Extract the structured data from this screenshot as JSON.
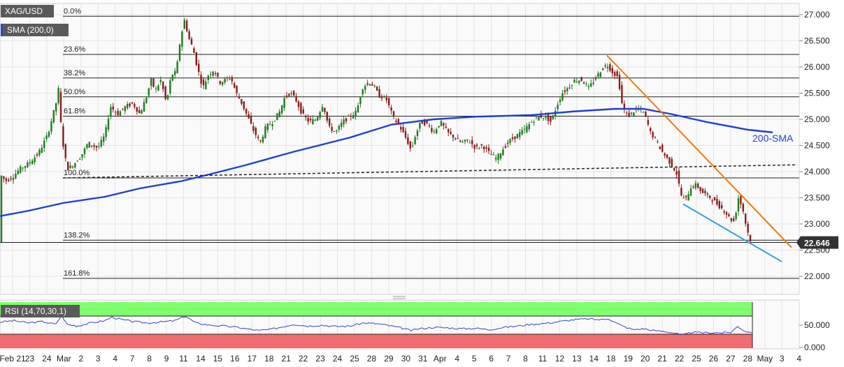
{
  "header": {
    "symbol": "XAG/USD",
    "indicator": "SMA (200,0)",
    "rsi_label": "RSI (14,70,30,1)"
  },
  "colors": {
    "grid": "#e4e4e4",
    "bull_candle": "#1e7a1e",
    "bear_candle": "#8b1a1a",
    "sma": "#1f3fd6",
    "falling_trendline": "#f07a10",
    "support_trendline": "#3aa0e0",
    "dashed_line": "#222222",
    "rsi_line": "#2b4acb",
    "rsi_overbought_band": "#80ff6e",
    "rsi_oversold_band": "#f26d6d",
    "price_tag": "#333333"
  },
  "chart_data": [
    {
      "type": "candlestick",
      "title": "XAG/USD",
      "y_ticks": [
        "27.000",
        "26.500",
        "26.000",
        "25.500",
        "25.000",
        "24.500",
        "24.000",
        "23.500",
        "23.000",
        "22.500",
        "22.000"
      ],
      "ylim": [
        21.7,
        27.25
      ],
      "x_ticks": [
        "Feb 21",
        "23",
        "24",
        "Mar",
        "2",
        "3",
        "4",
        "7",
        "8",
        "9",
        "11",
        "14",
        "15",
        "16",
        "17",
        "18",
        "21",
        "22",
        "23",
        "24",
        "25",
        "28",
        "29",
        "30",
        "31",
        "Apr",
        "4",
        "5",
        "6",
        "7",
        "8",
        "11",
        "12",
        "13",
        "14",
        "18",
        "19",
        "20",
        "21",
        "22",
        "25",
        "26",
        "27",
        "28",
        "May",
        "3",
        "4"
      ],
      "last_price": "22.646",
      "last_price_value": 22.646,
      "fibonacci_levels": [
        {
          "label": "0.0%",
          "value": 26.97
        },
        {
          "label": "23.6%",
          "value": 26.24
        },
        {
          "label": "38.2%",
          "value": 25.79
        },
        {
          "label": "50.0%",
          "value": 25.43
        },
        {
          "label": "61.8%",
          "value": 25.06
        },
        {
          "label": "100.0%",
          "value": 23.88
        },
        {
          "label": "138.2%",
          "value": 22.69
        },
        {
          "label": "161.8%",
          "value": 21.96
        }
      ],
      "price_anchors": [
        [
          0,
          23.95
        ],
        [
          8,
          23.82
        ],
        [
          18,
          23.9
        ],
        [
          28,
          24.05
        ],
        [
          40,
          24.15
        ],
        [
          55,
          24.35
        ],
        [
          68,
          24.7
        ],
        [
          80,
          25.3
        ],
        [
          84,
          25.6
        ],
        [
          88,
          24.7
        ],
        [
          96,
          24.05
        ],
        [
          106,
          24.15
        ],
        [
          116,
          24.3
        ],
        [
          126,
          24.55
        ],
        [
          140,
          24.45
        ],
        [
          150,
          24.7
        ],
        [
          158,
          25.25
        ],
        [
          168,
          25.1
        ],
        [
          180,
          25.25
        ],
        [
          190,
          25.3
        ],
        [
          200,
          25.1
        ],
        [
          210,
          25.45
        ],
        [
          216,
          25.75
        ],
        [
          222,
          25.55
        ],
        [
          230,
          25.75
        ],
        [
          238,
          25.3
        ],
        [
          245,
          25.85
        ],
        [
          252,
          25.9
        ],
        [
          258,
          26.55
        ],
        [
          264,
          26.9
        ],
        [
          270,
          26.55
        ],
        [
          276,
          26.35
        ],
        [
          282,
          26.0
        ],
        [
          290,
          25.6
        ],
        [
          298,
          25.85
        ],
        [
          306,
          25.95
        ],
        [
          314,
          25.7
        ],
        [
          322,
          25.75
        ],
        [
          330,
          25.8
        ],
        [
          338,
          25.5
        ],
        [
          346,
          25.3
        ],
        [
          354,
          25.05
        ],
        [
          362,
          24.8
        ],
        [
          372,
          24.55
        ],
        [
          380,
          24.85
        ],
        [
          390,
          24.95
        ],
        [
          400,
          25.15
        ],
        [
          408,
          25.45
        ],
        [
          416,
          25.5
        ],
        [
          424,
          25.35
        ],
        [
          432,
          25.1
        ],
        [
          442,
          24.95
        ],
        [
          452,
          25.0
        ],
        [
          462,
          25.3
        ],
        [
          470,
          24.85
        ],
        [
          480,
          24.75
        ],
        [
          490,
          24.95
        ],
        [
          500,
          25.05
        ],
        [
          510,
          25.15
        ],
        [
          518,
          25.6
        ],
        [
          526,
          25.7
        ],
        [
          534,
          25.65
        ],
        [
          542,
          25.45
        ],
        [
          552,
          25.4
        ],
        [
          562,
          25.05
        ],
        [
          572,
          24.85
        ],
        [
          582,
          24.6
        ],
        [
          588,
          24.4
        ],
        [
          594,
          24.7
        ],
        [
          602,
          24.95
        ],
        [
          612,
          24.9
        ],
        [
          620,
          24.75
        ],
        [
          630,
          24.95
        ],
        [
          640,
          24.75
        ],
        [
          650,
          24.65
        ],
        [
          660,
          24.55
        ],
        [
          670,
          24.6
        ],
        [
          680,
          24.45
        ],
        [
          690,
          24.5
        ],
        [
          700,
          24.35
        ],
        [
          710,
          24.25
        ],
        [
          720,
          24.45
        ],
        [
          730,
          24.6
        ],
        [
          740,
          24.7
        ],
        [
          750,
          24.8
        ],
        [
          760,
          24.95
        ],
        [
          770,
          25.05
        ],
        [
          780,
          25.05
        ],
        [
          788,
          24.95
        ],
        [
          796,
          25.25
        ],
        [
          804,
          25.5
        ],
        [
          812,
          25.6
        ],
        [
          822,
          25.75
        ],
        [
          832,
          25.75
        ],
        [
          842,
          25.6
        ],
        [
          850,
          25.75
        ],
        [
          860,
          25.95
        ],
        [
          868,
          26.05
        ],
        [
          876,
          25.9
        ],
        [
          884,
          25.8
        ],
        [
          890,
          25.25
        ],
        [
          898,
          25.05
        ],
        [
          906,
          25.15
        ],
        [
          914,
          25.2
        ],
        [
          922,
          25.1
        ],
        [
          930,
          24.75
        ],
        [
          938,
          24.6
        ],
        [
          946,
          24.4
        ],
        [
          954,
          24.25
        ],
        [
          962,
          24.1
        ],
        [
          968,
          23.95
        ],
        [
          974,
          23.55
        ],
        [
          980,
          23.45
        ],
        [
          988,
          23.7
        ],
        [
          996,
          23.75
        ],
        [
          1004,
          23.6
        ],
        [
          1012,
          23.55
        ],
        [
          1020,
          23.45
        ],
        [
          1028,
          23.35
        ],
        [
          1036,
          23.25
        ],
        [
          1044,
          23.1
        ],
        [
          1050,
          23.05
        ],
        [
          1056,
          23.5
        ],
        [
          1062,
          23.3
        ],
        [
          1068,
          22.9
        ],
        [
          1074,
          22.65
        ]
      ],
      "series": [
        {
          "name": "200-SMA",
          "values": [
            [
              0,
              23.15
            ],
            [
              40,
              23.25
            ],
            [
              90,
              23.4
            ],
            [
              150,
              23.52
            ],
            [
              200,
              23.68
            ],
            [
              260,
              23.82
            ],
            [
              300,
              23.95
            ],
            [
              350,
              24.12
            ],
            [
              420,
              24.38
            ],
            [
              500,
              24.65
            ],
            [
              560,
              24.9
            ],
            [
              620,
              25.0
            ],
            [
              680,
              25.05
            ],
            [
              760,
              25.08
            ],
            [
              820,
              25.15
            ],
            [
              880,
              25.2
            ],
            [
              920,
              25.2
            ],
            [
              960,
              25.1
            ],
            [
              1010,
              24.95
            ],
            [
              1070,
              24.8
            ],
            [
              1105,
              24.75
            ]
          ]
        },
        {
          "name": "Falling trendline",
          "values": [
            [
              868,
              26.22
            ],
            [
              1132,
              22.55
            ]
          ]
        },
        {
          "name": "Support trendline",
          "values": [
            [
              977,
              23.38
            ],
            [
              1118,
              22.28
            ]
          ]
        },
        {
          "name": "Horizontal support",
          "values": [
            [
              90,
              23.88
            ],
            [
              1140,
              24.13
            ]
          ]
        }
      ],
      "annotations": [
        "200-SMA"
      ]
    },
    {
      "type": "line",
      "title": "RSI (14,70,30,1)",
      "y_ticks": [
        "50.000",
        "0.000"
      ],
      "ylim": [
        0,
        100
      ],
      "overbought": 70,
      "oversold": 30,
      "series": [
        {
          "name": "RSI",
          "values": [
            [
              0,
              57
            ],
            [
              20,
              60
            ],
            [
              40,
              55
            ],
            [
              60,
              58
            ],
            [
              80,
              52
            ],
            [
              88,
              72
            ],
            [
              96,
              52
            ],
            [
              110,
              48
            ],
            [
              130,
              55
            ],
            [
              150,
              60
            ],
            [
              160,
              68
            ],
            [
              175,
              62
            ],
            [
              190,
              58
            ],
            [
              210,
              55
            ],
            [
              230,
              57
            ],
            [
              250,
              60
            ],
            [
              265,
              70
            ],
            [
              280,
              55
            ],
            [
              300,
              50
            ],
            [
              320,
              48
            ],
            [
              340,
              45
            ],
            [
              360,
              40
            ],
            [
              370,
              38
            ],
            [
              385,
              40
            ],
            [
              400,
              45
            ],
            [
              420,
              52
            ],
            [
              440,
              48
            ],
            [
              460,
              50
            ],
            [
              480,
              47
            ],
            [
              500,
              48
            ],
            [
              520,
              55
            ],
            [
              540,
              53
            ],
            [
              560,
              48
            ],
            [
              575,
              43
            ],
            [
              588,
              38
            ],
            [
              600,
              42
            ],
            [
              620,
              45
            ],
            [
              640,
              44
            ],
            [
              660,
              42
            ],
            [
              680,
              43
            ],
            [
              700,
              40
            ],
            [
              720,
              45
            ],
            [
              740,
              48
            ],
            [
              760,
              52
            ],
            [
              780,
              54
            ],
            [
              800,
              58
            ],
            [
              820,
              62
            ],
            [
              840,
              64
            ],
            [
              860,
              62
            ],
            [
              870,
              65
            ],
            [
              880,
              56
            ],
            [
              890,
              48
            ],
            [
              905,
              40
            ],
            [
              920,
              42
            ],
            [
              935,
              38
            ],
            [
              950,
              36
            ],
            [
              965,
              32
            ],
            [
              975,
              27
            ],
            [
              990,
              34
            ],
            [
              1005,
              33
            ],
            [
              1020,
              33
            ],
            [
              1035,
              33
            ],
            [
              1045,
              34
            ],
            [
              1055,
              47
            ],
            [
              1065,
              37
            ],
            [
              1075,
              33
            ]
          ]
        }
      ]
    }
  ],
  "labels": {
    "sma_annotation": "200-SMA"
  }
}
